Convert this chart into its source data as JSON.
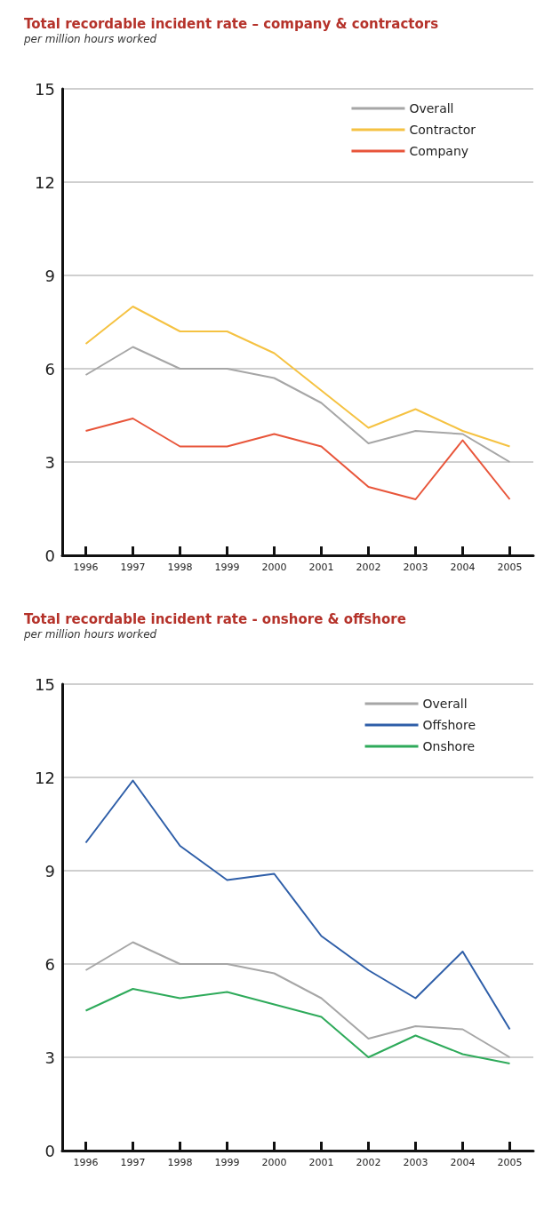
{
  "chart_data": [
    {
      "type": "line",
      "title": "Total recordable incident rate – company & contractors",
      "subtitle": "per million hours worked",
      "categories": [
        "1996",
        "1997",
        "1998",
        "1999",
        "2000",
        "2001",
        "2002",
        "2003",
        "2004",
        "2005"
      ],
      "series": [
        {
          "name": "Overall",
          "color": "#a6a6a6",
          "values": [
            5.8,
            6.7,
            6.0,
            6.0,
            5.7,
            4.9,
            3.6,
            4.0,
            3.9,
            3.0
          ]
        },
        {
          "name": "Contractor",
          "color": "#f5c242",
          "values": [
            6.8,
            8.0,
            7.2,
            7.2,
            6.5,
            5.3,
            4.1,
            4.7,
            4.0,
            3.5
          ]
        },
        {
          "name": "Company",
          "color": "#e8553a",
          "values": [
            4.0,
            4.4,
            3.5,
            3.5,
            3.9,
            3.5,
            2.2,
            1.8,
            3.7,
            1.8
          ]
        }
      ],
      "ylim": [
        0,
        15
      ],
      "yticks": [
        0,
        3,
        6,
        9,
        12,
        15
      ],
      "grid": "y",
      "legend": "top right",
      "marker": "none",
      "line_style": "solid"
    },
    {
      "type": "line",
      "title": "Total recordable incident rate - onshore & offshore",
      "subtitle": "per million hours worked",
      "categories": [
        "1996",
        "1997",
        "1998",
        "1999",
        "2000",
        "2001",
        "2002",
        "2003",
        "2004",
        "2005"
      ],
      "series": [
        {
          "name": "Overall",
          "color": "#a6a6a6",
          "values": [
            5.8,
            6.7,
            6.0,
            6.0,
            5.7,
            4.9,
            3.6,
            4.0,
            3.9,
            3.0
          ]
        },
        {
          "name": "Offshore",
          "color": "#2e5ea8",
          "values": [
            9.9,
            11.9,
            9.8,
            8.7,
            8.9,
            6.9,
            5.8,
            4.9,
            6.4,
            3.9
          ]
        },
        {
          "name": "Onshore",
          "color": "#2eaa5a",
          "values": [
            4.5,
            5.2,
            4.9,
            5.1,
            4.7,
            4.3,
            3.0,
            3.7,
            3.1,
            2.8
          ]
        }
      ],
      "ylim": [
        0,
        15
      ],
      "yticks": [
        0,
        3,
        6,
        9,
        12,
        15
      ],
      "grid": "y",
      "legend": "top right",
      "marker": "none",
      "line_style": "solid"
    }
  ]
}
